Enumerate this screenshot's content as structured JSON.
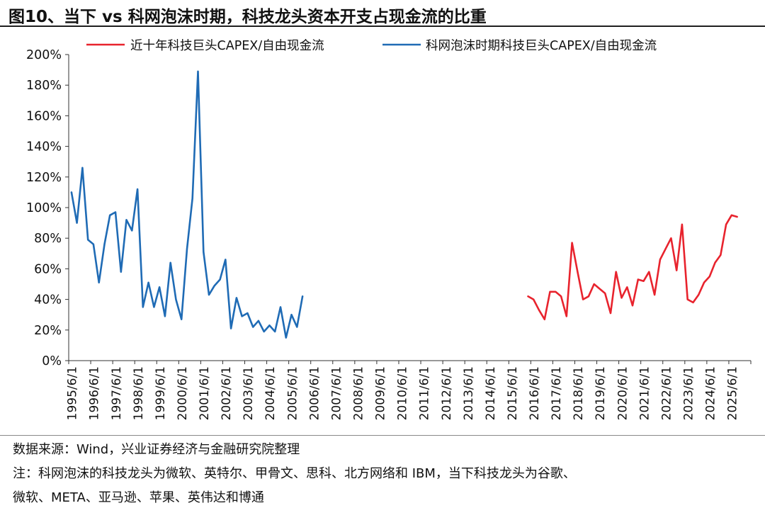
{
  "header": {
    "title": "图10、当下 vs 科网泡沫时期，科技龙头资本开支占现金流的比重"
  },
  "footer": {
    "source": "数据来源：Wind，兴业证券经济与金融研究院整理",
    "note_line1": "注：科网泡沫的科技龙头为微软、英特尔、甲骨文、思科、北方网络和 IBM，当下科技龙头为谷歌、",
    "note_line2": "微软、META、亚马逊、苹果、英伟达和博通"
  },
  "chart_data": {
    "type": "line",
    "title": "",
    "xlabel": "",
    "ylabel": "",
    "ylim": [
      0,
      200
    ],
    "y_unit": "%",
    "y_ticks": [
      0,
      20,
      40,
      60,
      80,
      100,
      120,
      140,
      160,
      180,
      200
    ],
    "x_tick_labels": [
      "1995/6/1",
      "1996/6/1",
      "1997/6/1",
      "1998/6/1",
      "1999/6/1",
      "2000/6/1",
      "2001/6/1",
      "2002/6/1",
      "2003/6/1",
      "2004/6/1",
      "2005/6/1",
      "2006/6/1",
      "2007/6/1",
      "2008/6/1",
      "2009/6/1",
      "2010/6/1",
      "2011/6/1",
      "2012/6/1",
      "2013/6/1",
      "2014/6/1",
      "2015/6/1",
      "2016/6/1",
      "2017/6/1",
      "2018/6/1",
      "2019/6/1",
      "2020/6/1",
      "2021/6/1",
      "2022/6/1",
      "2023/6/1",
      "2024/6/1",
      "2025/6/1"
    ],
    "x_start_quarter": "1995Q1",
    "grid": false,
    "legend_position": "top",
    "series": [
      {
        "name": "近十年科技巨头CAPEX/自由现金流",
        "color": "#e8232d",
        "start_quarter": "2015Q4",
        "values": [
          42,
          40,
          33,
          27,
          45,
          45,
          42,
          29,
          77,
          58,
          40,
          42,
          50,
          47,
          44,
          31,
          58,
          41,
          48,
          36,
          53,
          52,
          58,
          43,
          66,
          73,
          80,
          59,
          89,
          40,
          38,
          43,
          51,
          55,
          64,
          69,
          89,
          95,
          94
        ]
      },
      {
        "name": "科网泡沫时期科技巨头CAPEX/自由现金流",
        "color": "#1f6bb5",
        "start_quarter": "1995Q1",
        "values": [
          110,
          90,
          126,
          79,
          76,
          51,
          76,
          95,
          97,
          58,
          92,
          85,
          112,
          35,
          51,
          35,
          48,
          29,
          64,
          40,
          27,
          73,
          106,
          189,
          71,
          43,
          49,
          53,
          66,
          21,
          41,
          29,
          31,
          22,
          26,
          19,
          23,
          19,
          35,
          15,
          30,
          22,
          42
        ]
      }
    ]
  }
}
